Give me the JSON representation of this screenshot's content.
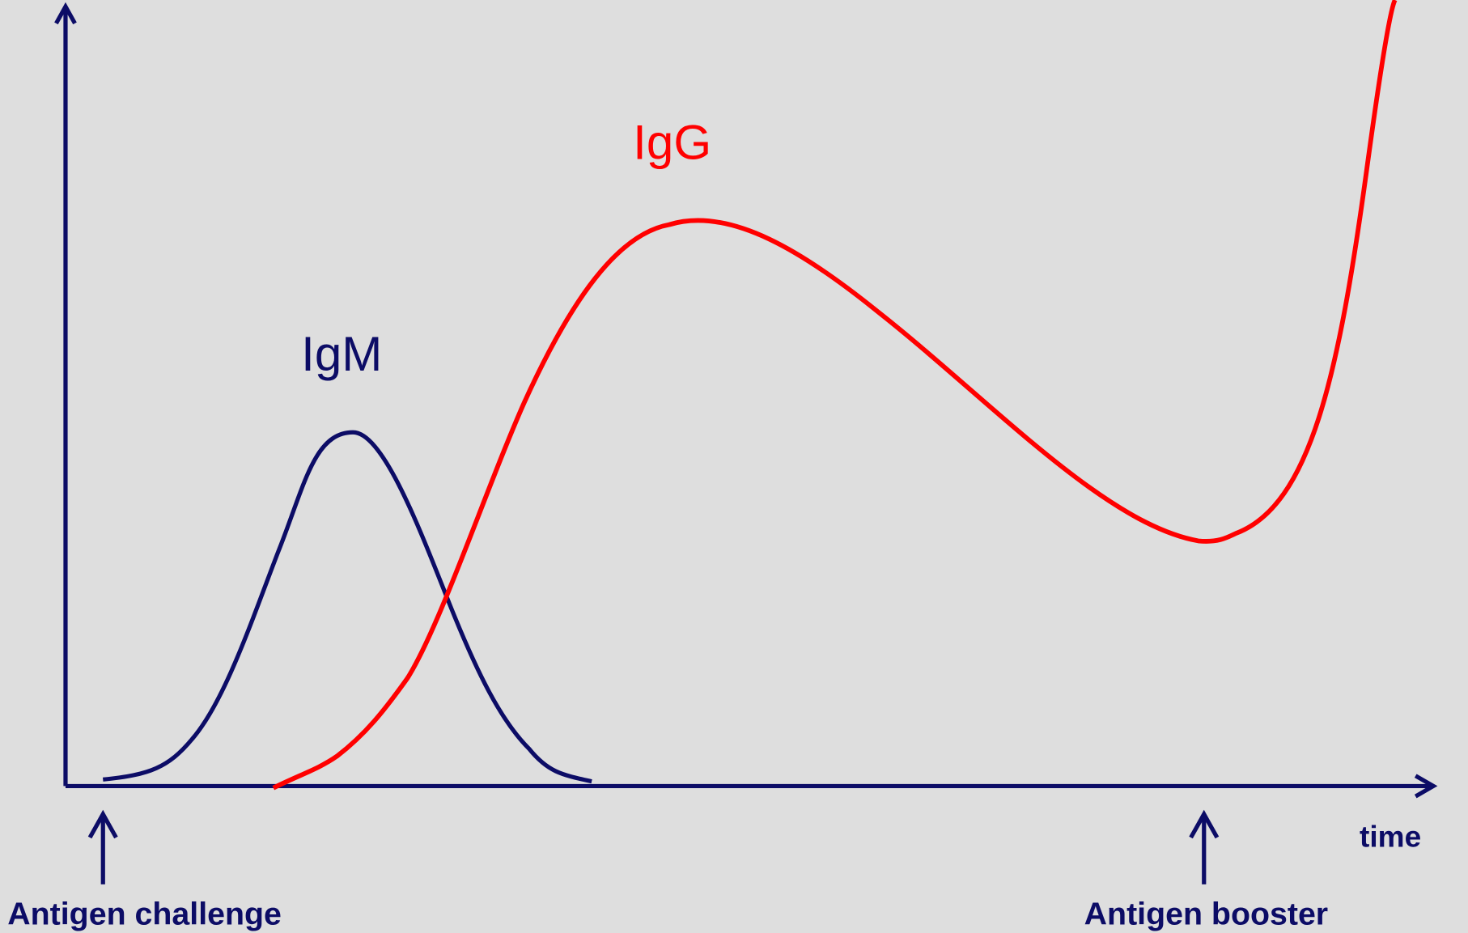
{
  "labels": {
    "igg": "IgG",
    "igm": "IgM",
    "x_axis": "time",
    "challenge": "Antigen challenge",
    "booster": "Antigen booster"
  }
}
